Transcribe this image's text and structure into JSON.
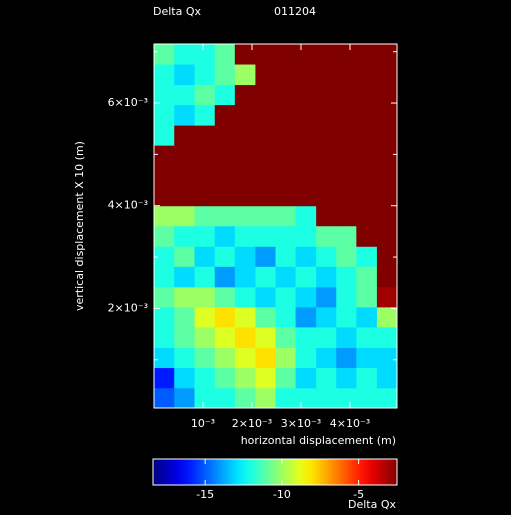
{
  "chart_data": {
    "type": "heatmap",
    "title": "Delta Qx",
    "subtitle": "011204",
    "xlabel": "horizontal displacement (m)",
    "ylabel": "vertical displacement X 10 (m)",
    "colorbar_label": "Delta Qx",
    "colormap": "jet",
    "xlim": [
      0,
      0.00496
    ],
    "ylim": [
      6e-05,
      0.00715
    ],
    "xticks": [
      {
        "value": 0.001,
        "label": "10⁻³"
      },
      {
        "value": 0.002,
        "label": "2×10⁻³"
      },
      {
        "value": 0.003,
        "label": "3×10⁻³"
      },
      {
        "value": 0.004,
        "label": "4×10⁻³"
      }
    ],
    "yticks": [
      {
        "value": 0.002,
        "label": "2×10⁻³"
      },
      {
        "value": 0.004,
        "label": "4×10⁻³"
      },
      {
        "value": 0.006,
        "label": "6×10⁻³"
      }
    ],
    "y_minor_ticks": [
      0.001,
      0.003,
      0.005,
      0.007
    ],
    "zlim": [
      -18.4,
      -2.5
    ],
    "zticks": [
      -15,
      -10,
      -5
    ],
    "x_edges": [
      0,
      0.000413,
      0.000827,
      0.00124,
      0.00165,
      0.00207,
      0.00248,
      0.00289,
      0.00331,
      0.00372,
      0.00413,
      0.00455,
      0.00496
    ],
    "y_edges": [
      6e-05,
      0.000454,
      0.000848,
      0.00124,
      0.00164,
      0.00203,
      0.00242,
      0.00282,
      0.00321,
      0.00361,
      0.004,
      0.00439,
      0.00479,
      0.00518,
      0.00557,
      0.00597,
      0.00636,
      0.00676,
      0.00715
    ],
    "z": [
      [
        -15,
        -14,
        -12,
        -12,
        -11,
        -10,
        -12,
        -12,
        -12,
        -12,
        -12,
        -12
      ],
      [
        -16,
        -13,
        -12,
        -11,
        -10,
        -9,
        -11,
        -13,
        -12,
        -13,
        -12,
        -13
      ],
      [
        -13,
        -12,
        -11,
        -10,
        -9,
        -8,
        -10,
        -12,
        -13,
        -14,
        -13,
        -13
      ],
      [
        -12,
        -11,
        -10,
        -9,
        -8,
        -9,
        -11,
        -12,
        -12,
        -13,
        -12,
        -12
      ],
      [
        -12,
        -11,
        -9,
        -8,
        -9,
        -11,
        -12,
        -14,
        -13,
        -12,
        -13,
        -10
      ],
      [
        -11,
        -10,
        -10,
        -11,
        -12,
        -13,
        -12,
        -13,
        -14,
        -12,
        -11,
        -3
      ],
      [
        -12,
        -13,
        -12,
        -14,
        -13,
        -12,
        -13,
        -12,
        -13,
        -12,
        -11,
        -2.5
      ],
      [
        -12,
        -11,
        -13,
        -12,
        -13,
        -14,
        -12,
        -13,
        -12,
        -11,
        -12,
        -2.5
      ],
      [
        -11,
        -12,
        -12,
        -13,
        -12,
        -12,
        -12,
        -12,
        -11,
        -11,
        -2.5,
        -2.5
      ],
      [
        -10,
        -10,
        -11,
        -11,
        -11,
        -11,
        -11,
        -12,
        -2.5,
        -2.5,
        -2.5,
        -2.5
      ],
      [
        -2.5,
        -2.5,
        -2.5,
        -2.5,
        -2.5,
        -2.5,
        -2.5,
        -2.5,
        -2.5,
        -2.5,
        -2.5,
        -2.5
      ],
      [
        -2.5,
        -2.5,
        -2.5,
        -2.5,
        -2.5,
        -2.5,
        -2.5,
        -2.5,
        -2.5,
        -2.5,
        -2.5,
        -2.5
      ],
      [
        -2.5,
        -2.5,
        -2.5,
        -2.5,
        -2.5,
        -2.5,
        -2.5,
        -2.5,
        -2.5,
        -2.5,
        -2.5,
        -2.5
      ],
      [
        -12,
        -2.5,
        -2.5,
        -2.5,
        -2.5,
        -2.5,
        -2.5,
        -2.5,
        -2.5,
        -2.5,
        -2.5,
        -2.5
      ],
      [
        -12,
        -13,
        -12,
        -2.5,
        -2.5,
        -2.5,
        -2.5,
        -2.5,
        -2.5,
        -2.5,
        -2.5,
        -2.5
      ],
      [
        -12,
        -12,
        -11,
        -12,
        -2.5,
        -2.5,
        -2.5,
        -2.5,
        -2.5,
        -2.5,
        -2.5,
        -2.5
      ],
      [
        -12,
        -13,
        -12,
        -11,
        -10,
        -2.5,
        -2.5,
        -2.5,
        -2.5,
        -2.5,
        -2.5,
        -2.5
      ],
      [
        -11,
        -12,
        -12,
        -11,
        -2.5,
        -2.5,
        -2.5,
        -2.5,
        -2.5,
        -2.5,
        -2.5,
        -2.5
      ]
    ]
  }
}
